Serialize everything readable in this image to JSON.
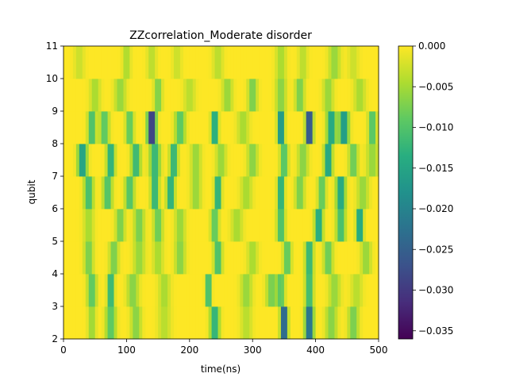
{
  "chart_data": {
    "type": "heatmap",
    "title": "ZZcorrelation_Moderate disorder",
    "xlabel": "time(ns)",
    "ylabel": "qubit",
    "xlim": [
      0,
      500
    ],
    "ylim": [
      2,
      11
    ],
    "x_ticks": [
      0,
      100,
      200,
      300,
      400,
      500
    ],
    "y_ticks": [
      2,
      3,
      4,
      5,
      6,
      7,
      8,
      9,
      10,
      11
    ],
    "colorbar": {
      "colormap": "viridis",
      "range": [
        -0.036,
        0.0
      ],
      "ticks": [
        0.0,
        -0.005,
        -0.01,
        -0.015,
        -0.02,
        -0.025,
        -0.03,
        -0.035
      ],
      "tick_labels": [
        "0.000",
        "−0.005",
        "−0.010",
        "−0.015",
        "−0.020",
        "−0.025",
        "−0.030",
        "−0.035"
      ]
    },
    "rows": [
      {
        "y0": 2,
        "y1": 3,
        "events": [
          [
            45,
            0.006,
            6
          ],
          [
            75,
            0.01,
            8
          ],
          [
            115,
            0.007,
            8
          ],
          [
            160,
            0.004,
            10
          ],
          [
            240,
            0.014,
            7
          ],
          [
            290,
            0.004,
            9
          ],
          [
            350,
            0.03,
            5
          ],
          [
            390,
            0.026,
            6
          ],
          [
            425,
            0.007,
            9
          ],
          [
            460,
            0.008,
            8
          ]
        ]
      },
      {
        "y0": 3,
        "y1": 4,
        "events": [
          [
            45,
            0.01,
            7
          ],
          [
            75,
            0.015,
            5
          ],
          [
            110,
            0.007,
            9
          ],
          [
            160,
            0.005,
            9
          ],
          [
            230,
            0.015,
            4
          ],
          [
            290,
            0.006,
            9
          ],
          [
            330,
            0.008,
            8
          ],
          [
            345,
            0.01,
            6
          ],
          [
            390,
            0.013,
            6
          ],
          [
            430,
            0.006,
            9
          ],
          [
            465,
            0.004,
            9
          ]
        ]
      },
      {
        "y0": 4,
        "y1": 5,
        "events": [
          [
            40,
            0.008,
            7
          ],
          [
            80,
            0.008,
            7
          ],
          [
            120,
            0.006,
            9
          ],
          [
            150,
            0.005,
            8
          ],
          [
            185,
            0.007,
            8
          ],
          [
            245,
            0.012,
            6
          ],
          [
            300,
            0.005,
            8
          ],
          [
            355,
            0.01,
            6
          ],
          [
            390,
            0.014,
            6
          ],
          [
            420,
            0.009,
            7
          ],
          [
            480,
            0.006,
            8
          ]
        ]
      },
      {
        "y0": 5,
        "y1": 6,
        "events": [
          [
            40,
            0.005,
            8
          ],
          [
            90,
            0.008,
            7
          ],
          [
            120,
            0.008,
            8
          ],
          [
            150,
            0.009,
            7
          ],
          [
            185,
            0.006,
            8
          ],
          [
            240,
            0.01,
            6
          ],
          [
            275,
            0.005,
            9
          ],
          [
            345,
            0.012,
            6
          ],
          [
            405,
            0.016,
            6
          ],
          [
            440,
            0.012,
            7
          ],
          [
            470,
            0.018,
            5
          ]
        ]
      },
      {
        "y0": 6,
        "y1": 7,
        "events": [
          [
            40,
            0.012,
            7
          ],
          [
            70,
            0.011,
            7
          ],
          [
            105,
            0.011,
            7
          ],
          [
            145,
            0.014,
            6
          ],
          [
            170,
            0.015,
            6
          ],
          [
            210,
            0.006,
            8
          ],
          [
            245,
            0.016,
            5
          ],
          [
            290,
            0.005,
            9
          ],
          [
            345,
            0.016,
            5
          ],
          [
            375,
            0.008,
            7
          ],
          [
            410,
            0.01,
            6
          ],
          [
            440,
            0.016,
            7
          ],
          [
            475,
            0.006,
            9
          ]
        ]
      },
      {
        "y0": 7,
        "y1": 8,
        "events": [
          [
            30,
            0.017,
            7
          ],
          [
            75,
            0.015,
            6
          ],
          [
            115,
            0.013,
            7
          ],
          [
            145,
            0.013,
            8
          ],
          [
            175,
            0.014,
            6
          ],
          [
            210,
            0.006,
            8
          ],
          [
            250,
            0.006,
            8
          ],
          [
            300,
            0.007,
            8
          ],
          [
            350,
            0.011,
            6
          ],
          [
            380,
            0.007,
            8
          ],
          [
            420,
            0.017,
            6
          ],
          [
            460,
            0.009,
            7
          ],
          [
            490,
            0.006,
            9
          ]
        ]
      },
      {
        "y0": 8,
        "y1": 9,
        "events": [
          [
            45,
            0.012,
            6
          ],
          [
            65,
            0.01,
            7
          ],
          [
            105,
            0.01,
            6
          ],
          [
            140,
            0.034,
            6
          ],
          [
            185,
            0.01,
            8
          ],
          [
            240,
            0.017,
            5
          ],
          [
            285,
            0.005,
            9
          ],
          [
            345,
            0.021,
            5
          ],
          [
            390,
            0.033,
            5
          ],
          [
            425,
            0.016,
            7
          ],
          [
            445,
            0.018,
            7
          ],
          [
            490,
            0.011,
            6
          ]
        ]
      },
      {
        "y0": 9,
        "y1": 10,
        "events": [
          [
            50,
            0.005,
            8
          ],
          [
            90,
            0.006,
            9
          ],
          [
            150,
            0.008,
            6
          ],
          [
            200,
            0.004,
            9
          ],
          [
            260,
            0.006,
            8
          ],
          [
            300,
            0.008,
            7
          ],
          [
            345,
            0.007,
            8
          ],
          [
            375,
            0.008,
            7
          ],
          [
            420,
            0.006,
            8
          ],
          [
            470,
            0.005,
            9
          ]
        ]
      },
      {
        "y0": 10,
        "y1": 11,
        "events": [
          [
            25,
            0.003,
            8
          ],
          [
            100,
            0.005,
            6
          ],
          [
            140,
            0.004,
            7
          ],
          [
            180,
            0.003,
            7
          ],
          [
            245,
            0.004,
            8
          ],
          [
            345,
            0.005,
            8
          ],
          [
            380,
            0.004,
            7
          ],
          [
            430,
            0.006,
            9
          ],
          [
            460,
            0.003,
            8
          ]
        ]
      }
    ]
  }
}
